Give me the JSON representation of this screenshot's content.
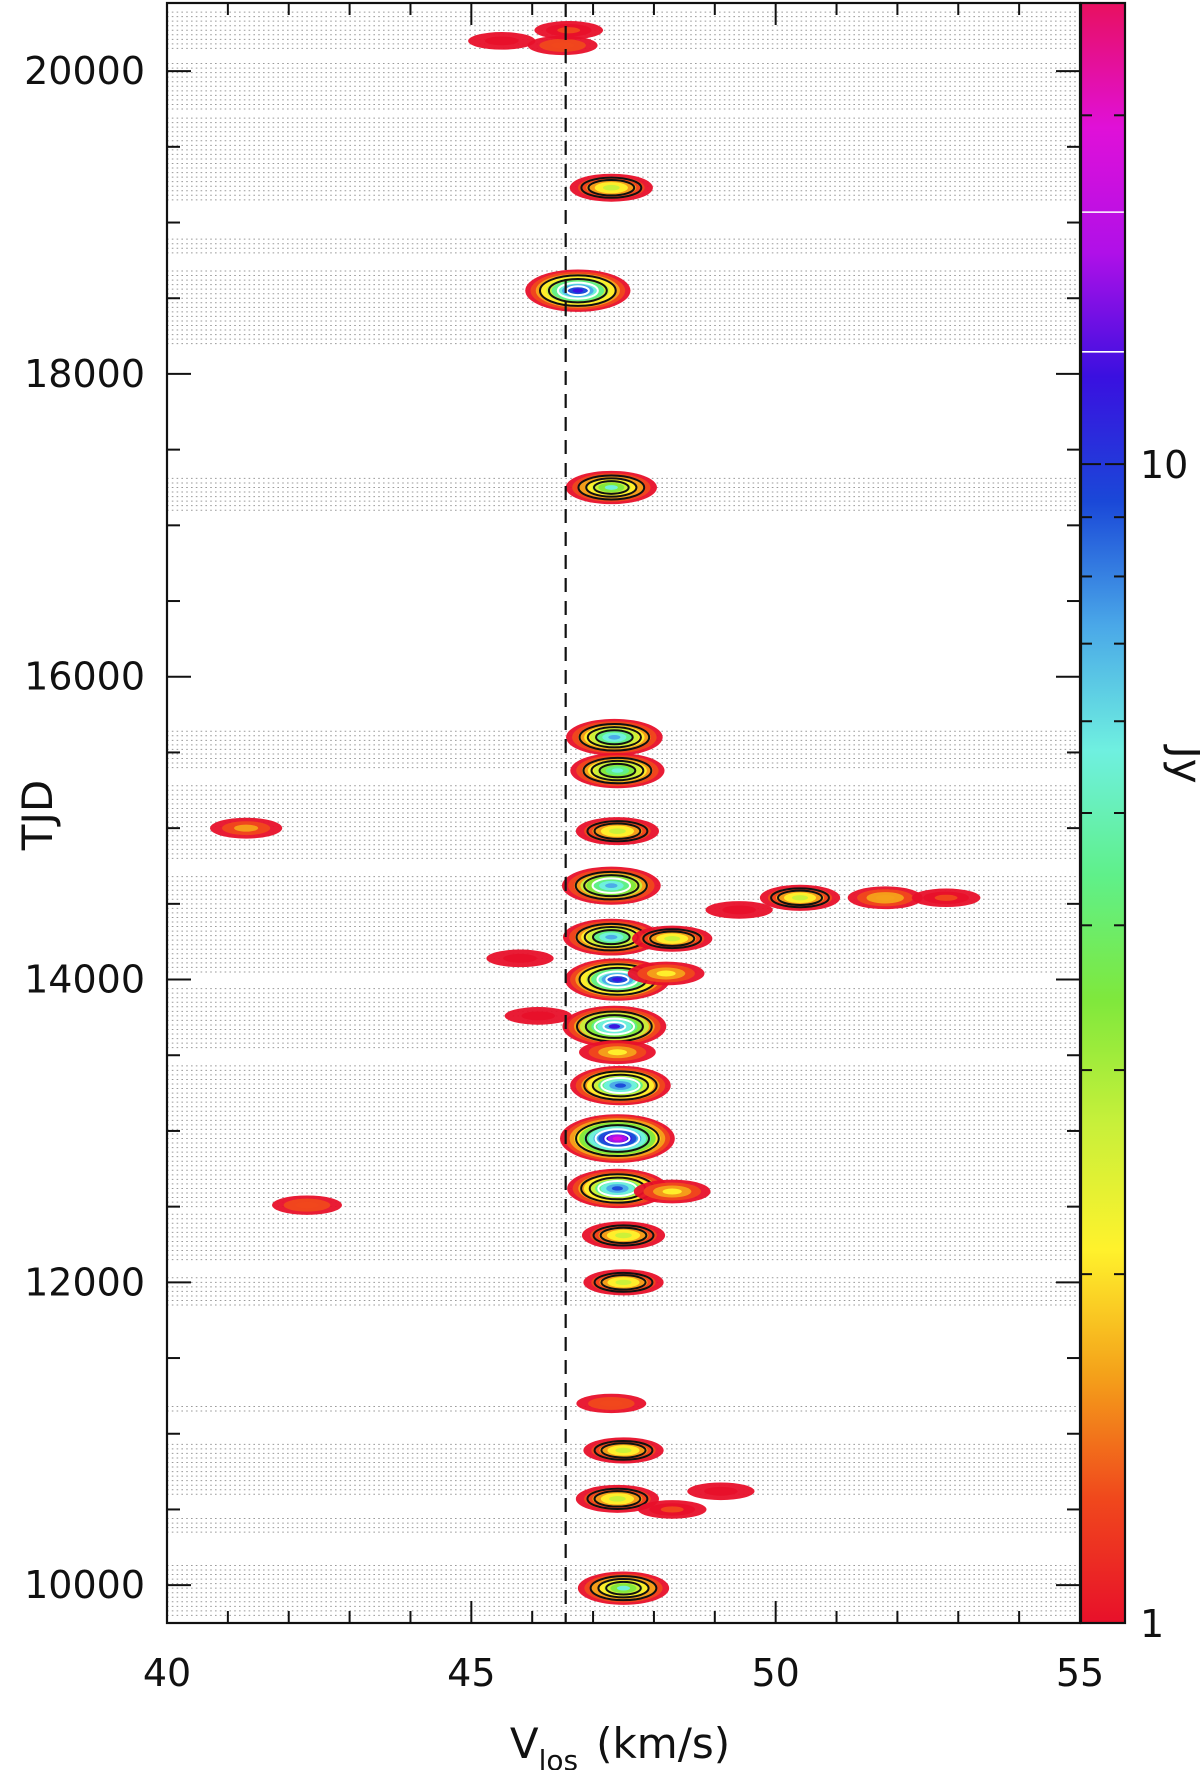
{
  "chart_data": {
    "type": "heatmap",
    "title": "",
    "xlabel": "V",
    "xlabel_subscript": "los",
    "xlabel_units": "(km/s)",
    "ylabel": "TJD",
    "colorbar_label": "Jy",
    "xlim": [
      40,
      55
    ],
    "ylim": [
      9750,
      20450
    ],
    "x_ticks": [
      40,
      45,
      50,
      55
    ],
    "y_ticks": [
      10000,
      12000,
      14000,
      16000,
      18000,
      20000
    ],
    "colorbar": {
      "scale": "log",
      "range": [
        1,
        25
      ],
      "tick_labels": [
        "1",
        "10"
      ],
      "tick_values": [
        1,
        10
      ],
      "colors": [
        "#e8102a",
        "#f0481c",
        "#f4a21a",
        "#fff22c",
        "#c8f03a",
        "#7fe83c",
        "#5ff08a",
        "#6ff0e0",
        "#4aa8e8",
        "#1a48d8",
        "#3a10e0",
        "#b010e8",
        "#e010d8",
        "#e81060"
      ]
    },
    "reference_line": {
      "x": 46.55,
      "style": "dashed"
    },
    "epoch_grid": "dotted horizontal lines at observed epochs",
    "epoch_bands": [
      [
        20150,
        20400
      ],
      [
        19750,
        20050
      ],
      [
        19150,
        19700
      ],
      [
        18800,
        18900
      ],
      [
        18200,
        18700
      ],
      [
        17100,
        17320
      ],
      [
        15400,
        15650
      ],
      [
        14800,
        15300
      ],
      [
        14050,
        14700
      ],
      [
        13550,
        13950
      ],
      [
        12500,
        13450
      ],
      [
        12150,
        12450
      ],
      [
        11850,
        12050
      ],
      [
        11150,
        11200
      ],
      [
        10600,
        10950
      ],
      [
        10350,
        10450
      ],
      [
        9800,
        10150
      ]
    ],
    "features": [
      {
        "v": 46.75,
        "tjd": 18550,
        "peak": 12
      },
      {
        "v": 47.3,
        "tjd": 19230,
        "peak": 3
      },
      {
        "v": 47.3,
        "tjd": 17250,
        "peak": 5
      },
      {
        "v": 47.35,
        "tjd": 15600,
        "peak": 7
      },
      {
        "v": 47.4,
        "tjd": 15380,
        "peak": 6
      },
      {
        "v": 47.4,
        "tjd": 14980,
        "peak": 3
      },
      {
        "v": 47.3,
        "tjd": 14620,
        "peak": 8
      },
      {
        "v": 47.3,
        "tjd": 14280,
        "peak": 7
      },
      {
        "v": 47.4,
        "tjd": 14000,
        "peak": 12
      },
      {
        "v": 47.35,
        "tjd": 13690,
        "peak": 11
      },
      {
        "v": 47.45,
        "tjd": 13300,
        "peak": 9
      },
      {
        "v": 47.4,
        "tjd": 12950,
        "peak": 22
      },
      {
        "v": 47.4,
        "tjd": 12620,
        "peak": 9
      },
      {
        "v": 47.5,
        "tjd": 12310,
        "peak": 3
      },
      {
        "v": 47.5,
        "tjd": 12000,
        "peak": 2.5
      },
      {
        "v": 47.3,
        "tjd": 11200,
        "peak": 1.3
      },
      {
        "v": 47.5,
        "tjd": 10890,
        "peak": 2.5
      },
      {
        "v": 47.4,
        "tjd": 10570,
        "peak": 3
      },
      {
        "v": 47.5,
        "tjd": 9980,
        "peak": 5
      },
      {
        "v": 50.4,
        "tjd": 14540,
        "peak": 2.5
      },
      {
        "v": 51.8,
        "tjd": 14540,
        "peak": 1.8
      },
      {
        "v": 52.8,
        "tjd": 14540,
        "peak": 1.2
      },
      {
        "v": 49.4,
        "tjd": 14460,
        "peak": 1.1
      },
      {
        "v": 48.3,
        "tjd": 14270,
        "peak": 2.5
      },
      {
        "v": 48.2,
        "tjd": 14040,
        "peak": 2
      },
      {
        "v": 47.4,
        "tjd": 13520,
        "peak": 2
      },
      {
        "v": 48.3,
        "tjd": 12600,
        "peak": 2
      },
      {
        "v": 48.3,
        "tjd": 10500,
        "peak": 1.2
      },
      {
        "v": 49.1,
        "tjd": 10620,
        "peak": 1.1
      },
      {
        "v": 41.3,
        "tjd": 15000,
        "peak": 1.5
      },
      {
        "v": 42.3,
        "tjd": 12510,
        "peak": 1.3
      },
      {
        "v": 46.1,
        "tjd": 13760,
        "peak": 1.1
      },
      {
        "v": 45.8,
        "tjd": 14140,
        "peak": 1.1
      },
      {
        "v": 46.5,
        "tjd": 20170,
        "peak": 1.3
      },
      {
        "v": 46.6,
        "tjd": 20270,
        "peak": 1.2
      },
      {
        "v": 45.5,
        "tjd": 20200,
        "peak": 1.1
      }
    ]
  }
}
